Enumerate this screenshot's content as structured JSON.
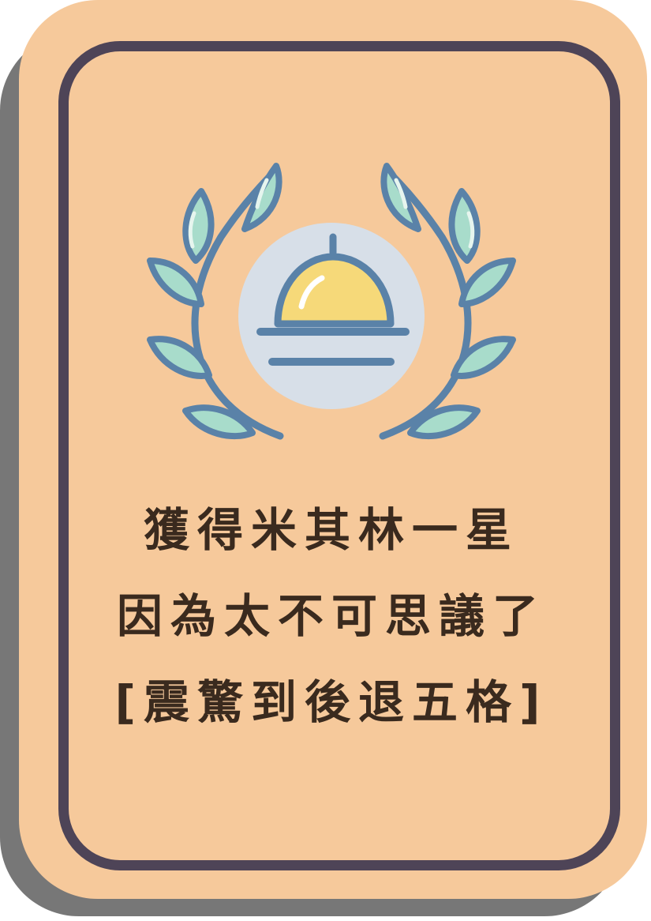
{
  "card": {
    "icon": "cloche-laurel-icon",
    "lines": [
      "獲得米其林一星",
      "因為太不可思議了",
      "[震驚到後退五格]"
    ]
  },
  "colors": {
    "card_bg": "#f6c99b",
    "border": "#4e4457",
    "shadow": "#777777",
    "text": "#3a2a1e",
    "leaf_fill": "#a8dccb",
    "leaf_stroke": "#5a82a8",
    "circle_bg": "#d7dfe8",
    "cloche": "#f6d979"
  }
}
